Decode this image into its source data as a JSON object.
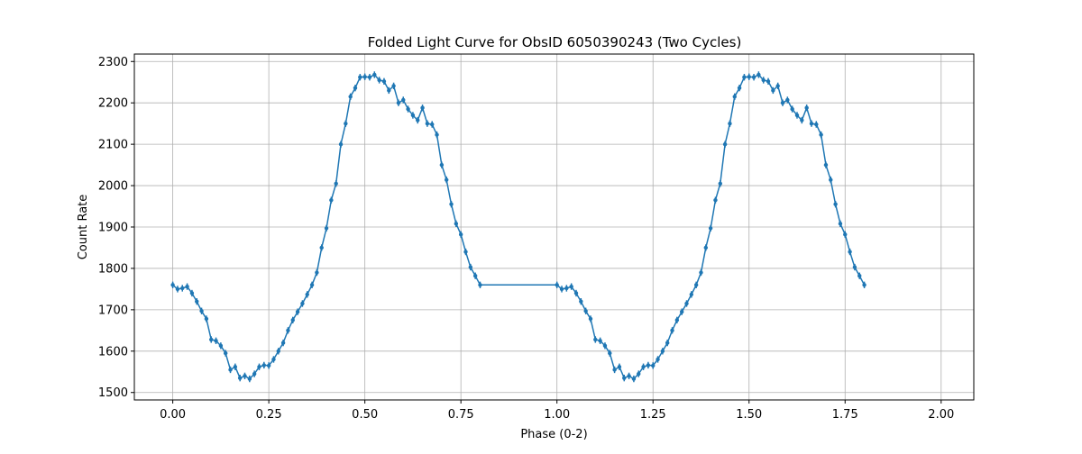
{
  "chart_data": {
    "type": "line",
    "title": "Folded Light Curve for ObsID 6050390243 (Two Cycles)",
    "xlabel": "Phase (0-2)",
    "ylabel": "Count Rate",
    "xlim": [
      -0.1,
      2.085
    ],
    "ylim": [
      1482,
      2318
    ],
    "xticks": [
      0.0,
      0.25,
      0.5,
      0.75,
      1.0,
      1.25,
      1.5,
      1.75,
      2.0
    ],
    "xtick_labels": [
      "0.00",
      "0.25",
      "0.50",
      "0.75",
      "1.00",
      "1.25",
      "1.50",
      "1.75",
      "2.00"
    ],
    "yticks": [
      1500,
      1600,
      1700,
      1800,
      1900,
      2000,
      2100,
      2200,
      2300
    ],
    "ytick_labels": [
      "1500",
      "1600",
      "1700",
      "1800",
      "1900",
      "2000",
      "2100",
      "2200",
      "2300"
    ],
    "grid": true,
    "color": "#1f77b4",
    "error_bar": 8,
    "phase_step": 0.0125,
    "cycle_values": [
      1760,
      1750,
      1752,
      1756,
      1740,
      1720,
      1697,
      1678,
      1628,
      1625,
      1613,
      1595,
      1555,
      1562,
      1535,
      1540,
      1533,
      1545,
      1562,
      1566,
      1565,
      1580,
      1600,
      1620,
      1650,
      1675,
      1695,
      1715,
      1737,
      1760,
      1790,
      1850,
      1897,
      1965,
      2005,
      2100,
      2150,
      2215,
      2236,
      2262,
      2263,
      2262,
      2268,
      2255,
      2252,
      2230,
      2241,
      2200,
      2207,
      2185,
      2170,
      2158,
      2188,
      2150,
      2148,
      2123,
      2050,
      2014,
      1955,
      1908,
      1882,
      1840,
      1803,
      1782,
      1760
    ],
    "series": [
      {
        "values_from": "cycle_values"
      }
    ]
  }
}
